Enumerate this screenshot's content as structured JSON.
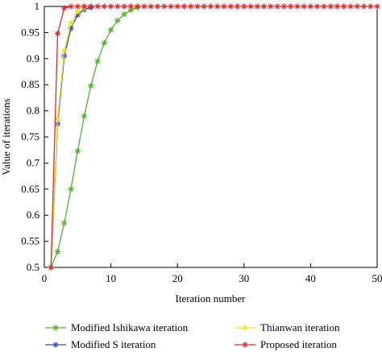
{
  "chart_data": {
    "type": "line",
    "xlabel": "Iteration number",
    "ylabel": "Value of iterations",
    "xlim": [
      0,
      50
    ],
    "ylim": [
      0.5,
      1
    ],
    "x_ticks": [
      "0",
      "10",
      "20",
      "30",
      "40",
      "50"
    ],
    "y_ticks": [
      "0.5",
      "0.55",
      "0.6",
      "0.65",
      "0.7",
      "0.75",
      "0.8",
      "0.85",
      "0.9",
      "0.95",
      "1"
    ],
    "grid": false,
    "legend_position": "bottom",
    "x": [
      1,
      2,
      3,
      4,
      5,
      6,
      7,
      8,
      9,
      10,
      11,
      12,
      13,
      14,
      15,
      16,
      17,
      18,
      19,
      20,
      21,
      22,
      23,
      24,
      25,
      26,
      27,
      28,
      29,
      30,
      31,
      32,
      33,
      34,
      35,
      36,
      37,
      38,
      39,
      40,
      41,
      42,
      43,
      44,
      45,
      46,
      47,
      48,
      49,
      50
    ],
    "series": [
      {
        "name": "Modified Ishikawa iteration",
        "color": "#55b030",
        "marker": "asterisk",
        "x": [
          1,
          2,
          3,
          4,
          5,
          6,
          7,
          8,
          9,
          10,
          11,
          12,
          13,
          14
        ],
        "values": [
          0.5,
          0.53,
          0.585,
          0.65,
          0.723,
          0.79,
          0.848,
          0.895,
          0.93,
          0.955,
          0.973,
          0.985,
          0.993,
          0.998
        ]
      },
      {
        "name": "Modified S iteration",
        "color": "#2b4cb0",
        "marker": "asterisk",
        "x": [
          1,
          2,
          3,
          4,
          5,
          6,
          7
        ],
        "values": [
          0.5,
          0.775,
          0.905,
          0.958,
          0.984,
          0.994,
          0.998
        ]
      },
      {
        "name": "Thianwan iteration",
        "color": "#f2e01a",
        "marker": "asterisk",
        "x": [
          1,
          2,
          3,
          4,
          5,
          6
        ],
        "values": [
          0.5,
          0.785,
          0.915,
          0.968,
          0.99,
          0.997
        ]
      },
      {
        "name": "Proposed iteration",
        "color": "#e0282e",
        "marker": "asterisk",
        "x": [
          1,
          2,
          3,
          4,
          5,
          6,
          7,
          8,
          9,
          10,
          11,
          12,
          13,
          14,
          15,
          16,
          17,
          18,
          19,
          20,
          21,
          22,
          23,
          24,
          25,
          26,
          27,
          28,
          29,
          30,
          31,
          32,
          33,
          34,
          35,
          36,
          37,
          38,
          39,
          40,
          41,
          42,
          43,
          44,
          45,
          46,
          47,
          48,
          49,
          50
        ],
        "values": [
          0.5,
          0.948,
          0.997,
          1,
          1,
          1,
          1,
          1,
          1,
          1,
          1,
          1,
          1,
          1,
          1,
          1,
          1,
          1,
          1,
          1,
          1,
          1,
          1,
          1,
          1,
          1,
          1,
          1,
          1,
          1,
          1,
          1,
          1,
          1,
          1,
          1,
          1,
          1,
          1,
          1,
          1,
          1,
          1,
          1,
          1,
          1,
          1,
          1,
          1,
          1
        ]
      }
    ]
  }
}
